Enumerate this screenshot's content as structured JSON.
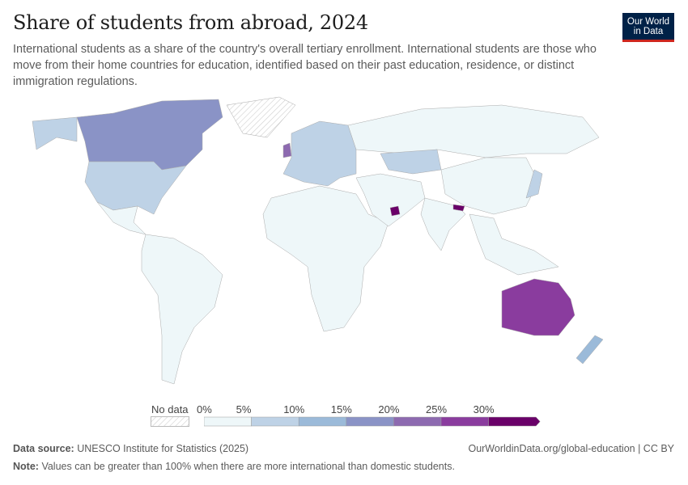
{
  "header": {
    "title": "Share of students from abroad, 2024",
    "subtitle": "International students as a share of the country's overall tertiary enrollment. International students are those who move from their home countries for education, identified based on their past education, residence, or distinct immigration regulations.",
    "logo_text": "Our World in Data"
  },
  "legend": {
    "no_data_label": "No data",
    "ticks": [
      "0%",
      "5%",
      "10%",
      "15%",
      "20%",
      "25%",
      "30%"
    ],
    "bins": [
      {
        "range": [
          0,
          5
        ],
        "color": "#eef7f9"
      },
      {
        "range": [
          5,
          10
        ],
        "color": "#bed2e6"
      },
      {
        "range": [
          10,
          15
        ],
        "color": "#9bbad9"
      },
      {
        "range": [
          15,
          20
        ],
        "color": "#8a93c6"
      },
      {
        "range": [
          20,
          25
        ],
        "color": "#8d6ab0"
      },
      {
        "range": [
          25,
          30
        ],
        "color": "#8a3c9e"
      },
      {
        "range": [
          30,
          null
        ],
        "color": "#6a0069"
      }
    ],
    "no_data_color": "#e0e0e0"
  },
  "map": {
    "regions": [
      {
        "name": "Canada",
        "bin": 3
      },
      {
        "name": "United States",
        "bin": 1
      },
      {
        "name": "Greenland",
        "bin": null
      },
      {
        "name": "Mexico",
        "bin": 0
      },
      {
        "name": "South America",
        "bin": 0
      },
      {
        "name": "Africa",
        "bin": 0
      },
      {
        "name": "Europe",
        "bin": 1
      },
      {
        "name": "United Kingdom",
        "bin": 4
      },
      {
        "name": "Russia",
        "bin": 0
      },
      {
        "name": "Kazakhstan",
        "bin": 1
      },
      {
        "name": "China",
        "bin": 0
      },
      {
        "name": "India",
        "bin": 0
      },
      {
        "name": "Middle East",
        "bin": 0
      },
      {
        "name": "United Arab Emirates",
        "bin": 6
      },
      {
        "name": "Nepal",
        "bin": 6
      },
      {
        "name": "Japan",
        "bin": 1
      },
      {
        "name": "Southeast Asia",
        "bin": 0
      },
      {
        "name": "Australia",
        "bin": 5
      },
      {
        "name": "New Zealand",
        "bin": 2
      }
    ]
  },
  "footer": {
    "source_label": "Data source:",
    "source": "UNESCO Institute for Statistics (2025)",
    "url": "OurWorldinData.org/global-education | CC BY",
    "note_label": "Note:",
    "note": "Values can be greater than 100% when there are more international than domestic students."
  }
}
